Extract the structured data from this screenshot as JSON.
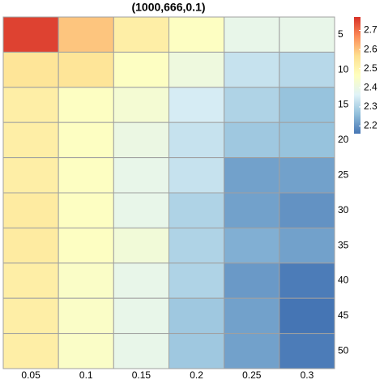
{
  "chart_data": {
    "type": "heatmap",
    "title": "(1000,666,0.1)",
    "x": [
      "0.05",
      "0.1",
      "0.15",
      "0.2",
      "0.25",
      "0.3"
    ],
    "y": [
      "5",
      "10",
      "15",
      "20",
      "25",
      "30",
      "35",
      "40",
      "45",
      "50"
    ],
    "values": [
      [
        2.75,
        2.6,
        2.52,
        2.46,
        2.39,
        2.39
      ],
      [
        2.55,
        2.55,
        2.46,
        2.41,
        2.33,
        2.31
      ],
      [
        2.52,
        2.46,
        2.43,
        2.35,
        2.3,
        2.27
      ],
      [
        2.52,
        2.46,
        2.4,
        2.33,
        2.28,
        2.27
      ],
      [
        2.52,
        2.46,
        2.39,
        2.33,
        2.22,
        2.22
      ],
      [
        2.53,
        2.46,
        2.39,
        2.3,
        2.22,
        2.2
      ],
      [
        2.53,
        2.46,
        2.42,
        2.3,
        2.24,
        2.22
      ],
      [
        2.52,
        2.45,
        2.39,
        2.3,
        2.21,
        2.17
      ],
      [
        2.52,
        2.45,
        2.39,
        2.28,
        2.22,
        2.16
      ],
      [
        2.52,
        2.45,
        2.39,
        2.28,
        2.22,
        2.17
      ]
    ],
    "colors": [
      "#4575b4",
      "#91bfdb",
      "#e0f3f8",
      "#ffffbf",
      "#fee090",
      "#fc8d59",
      "#d73027"
    ],
    "zlim": [
      2.16,
      2.77
    ],
    "zticks": [
      2.2,
      2.3,
      2.4,
      2.5,
      2.6,
      2.7
    ]
  }
}
